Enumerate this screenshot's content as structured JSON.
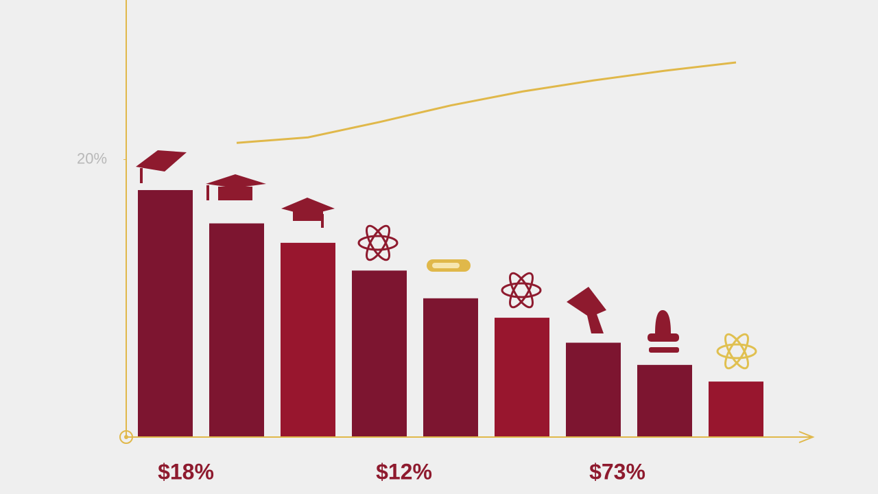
{
  "chart_data": {
    "type": "bar",
    "categories": [
      null,
      null,
      null,
      null,
      null,
      null,
      null,
      null,
      null
    ],
    "values": [
      17.8,
      15.4,
      14.0,
      12.0,
      10.0,
      8.6,
      6.8,
      5.2,
      4.0
    ],
    "colors": [
      "#7d1530",
      "#7d1530",
      "#98162e",
      "#7d1530",
      "#7d1530",
      "#98162e",
      "#7d1530",
      "#7d1530",
      "#98162e"
    ],
    "line": {
      "color": "#e0b84a",
      "values": [
        null,
        21.2,
        21.6,
        22.7,
        23.9,
        24.9,
        25.7,
        26.4,
        27.0
      ]
    },
    "axis_color": "#e0b84a",
    "ylim": [
      0,
      31.5
    ],
    "yticks": [
      {
        "value": 20,
        "label": "20%"
      }
    ],
    "annotations": [
      "$18%",
      "$12%",
      "$73%"
    ]
  }
}
